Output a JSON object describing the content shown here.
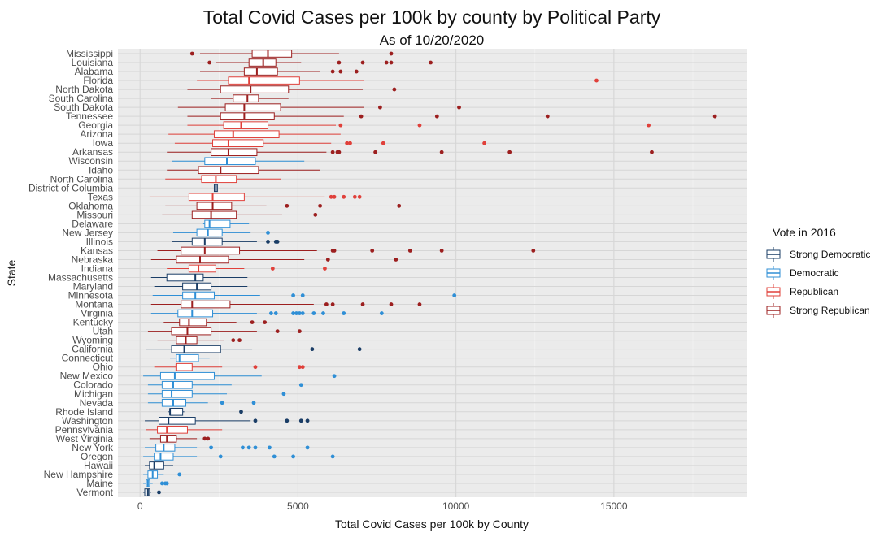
{
  "chart_data": {
    "type": "boxplot",
    "orientation": "horizontal",
    "title": "Total Covid Cases per 100k by county by Political Party",
    "subtitle": "As of 10/20/2020",
    "xlabel": "Total Covid Cases per 100k by County",
    "ylabel": "State",
    "xlim": [
      -700,
      19200
    ],
    "xticks": [
      0,
      5000,
      10000,
      15000
    ],
    "grid": true,
    "legend": {
      "title": "Vote in 2016",
      "position": "right",
      "entries": [
        {
          "key": "SD",
          "label": "Strong Democratic",
          "color": "#1a3d66"
        },
        {
          "key": "D",
          "label": "Democratic",
          "color": "#2f8fd6"
        },
        {
          "key": "R",
          "label": "Republican",
          "color": "#e0403a"
        },
        {
          "key": "SR",
          "label": "Strong Republican",
          "color": "#9c1f1f"
        }
      ]
    },
    "states": [
      {
        "name": "Mississippi",
        "party": "SR",
        "wlo": 1900,
        "q1": 3550,
        "med": 4050,
        "q3": 4800,
        "whi": 6300,
        "outliers": [
          1650,
          7950
        ]
      },
      {
        "name": "Louisiana",
        "party": "SR",
        "wlo": 2400,
        "q1": 3450,
        "med": 3900,
        "q3": 4300,
        "whi": 5100,
        "outliers": [
          2200,
          6300,
          7050,
          7800,
          7950,
          9200
        ]
      },
      {
        "name": "Alabama",
        "party": "SR",
        "wlo": 1900,
        "q1": 3300,
        "med": 3700,
        "q3": 4350,
        "whi": 5700,
        "outliers": [
          6100,
          6350,
          6850
        ]
      },
      {
        "name": "Florida",
        "party": "R",
        "wlo": 1800,
        "q1": 2800,
        "med": 3450,
        "q3": 5050,
        "whi": 7100,
        "outliers": [
          14450
        ]
      },
      {
        "name": "North Dakota",
        "party": "SR",
        "wlo": 1500,
        "q1": 2550,
        "med": 3500,
        "q3": 4700,
        "whi": 7050,
        "outliers": [
          8050
        ]
      },
      {
        "name": "South Carolina",
        "party": "SR",
        "wlo": 2250,
        "q1": 2950,
        "med": 3400,
        "q3": 3750,
        "whi": 4700,
        "outliers": []
      },
      {
        "name": "South Dakota",
        "party": "SR",
        "wlo": 1200,
        "q1": 2700,
        "med": 3300,
        "q3": 4450,
        "whi": 7100,
        "outliers": [
          7600,
          10100
        ]
      },
      {
        "name": "Tennessee",
        "party": "SR",
        "wlo": 1500,
        "q1": 2550,
        "med": 3300,
        "q3": 4250,
        "whi": 6450,
        "outliers": [
          7000,
          9400,
          12900,
          18200
        ]
      },
      {
        "name": "Georgia",
        "party": "R",
        "wlo": 1500,
        "q1": 2650,
        "med": 3200,
        "q3": 4050,
        "whi": 6200,
        "outliers": [
          6350,
          8850,
          16100
        ]
      },
      {
        "name": "Arizona",
        "party": "R",
        "wlo": 900,
        "q1": 2350,
        "med": 2950,
        "q3": 4400,
        "whi": 6350,
        "outliers": []
      },
      {
        "name": "Iowa",
        "party": "R",
        "wlo": 1100,
        "q1": 2300,
        "med": 2800,
        "q3": 3900,
        "whi": 6050,
        "outliers": [
          6550,
          6650,
          7700,
          10900
        ]
      },
      {
        "name": "Arkansas",
        "party": "SR",
        "wlo": 850,
        "q1": 2250,
        "med": 2800,
        "q3": 3700,
        "whi": 5900,
        "outliers": [
          6100,
          6250,
          6300,
          7450,
          9550,
          11700,
          16200
        ]
      },
      {
        "name": "Wisconsin",
        "party": "D",
        "wlo": 1000,
        "q1": 2050,
        "med": 2750,
        "q3": 3650,
        "whi": 5200,
        "outliers": []
      },
      {
        "name": "Idaho",
        "party": "SR",
        "wlo": 850,
        "q1": 1850,
        "med": 2550,
        "q3": 3750,
        "whi": 5700,
        "outliers": []
      },
      {
        "name": "North Carolina",
        "party": "R",
        "wlo": 800,
        "q1": 1950,
        "med": 2400,
        "q3": 3050,
        "whi": 4450,
        "outliers": []
      },
      {
        "name": "District of Columbia",
        "party": "SD",
        "wlo": 2350,
        "q1": 2350,
        "med": 2400,
        "q3": 2450,
        "whi": 2450,
        "outliers": []
      },
      {
        "name": "Texas",
        "party": "R",
        "wlo": 300,
        "q1": 1550,
        "med": 2300,
        "q3": 3300,
        "whi": 5850,
        "outliers": [
          6050,
          6150,
          6450,
          6800,
          6950
        ]
      },
      {
        "name": "Oklahoma",
        "party": "SR",
        "wlo": 800,
        "q1": 1800,
        "med": 2300,
        "q3": 2900,
        "whi": 4000,
        "outliers": [
          4650,
          5700,
          8200
        ]
      },
      {
        "name": "Missouri",
        "party": "SR",
        "wlo": 700,
        "q1": 1650,
        "med": 2250,
        "q3": 3050,
        "whi": 4500,
        "outliers": [
          5550
        ]
      },
      {
        "name": "Delaware",
        "party": "D",
        "wlo": 2000,
        "q1": 2050,
        "med": 2200,
        "q3": 2850,
        "whi": 3450,
        "outliers": []
      },
      {
        "name": "New Jersey",
        "party": "D",
        "wlo": 1050,
        "q1": 1800,
        "med": 2150,
        "q3": 2600,
        "whi": 3500,
        "outliers": [
          4050
        ]
      },
      {
        "name": "Illinois",
        "party": "SD",
        "wlo": 1000,
        "q1": 1650,
        "med": 2050,
        "q3": 2600,
        "whi": 3700,
        "outliers": [
          4050,
          4300,
          4350
        ]
      },
      {
        "name": "Kansas",
        "party": "SR",
        "wlo": 550,
        "q1": 1300,
        "med": 2050,
        "q3": 3150,
        "whi": 5600,
        "outliers": [
          6100,
          6150,
          7350,
          8550,
          9550,
          12450
        ]
      },
      {
        "name": "Nebraska",
        "party": "SR",
        "wlo": 350,
        "q1": 1150,
        "med": 1900,
        "q3": 2800,
        "whi": 5200,
        "outliers": [
          5950,
          8100
        ]
      },
      {
        "name": "Indiana",
        "party": "R",
        "wlo": 850,
        "q1": 1550,
        "med": 1850,
        "q3": 2400,
        "whi": 3300,
        "outliers": [
          4200,
          5850
        ]
      },
      {
        "name": "Massachusetts",
        "party": "SD",
        "wlo": 350,
        "q1": 850,
        "med": 1750,
        "q3": 2000,
        "whi": 3400,
        "outliers": []
      },
      {
        "name": "Maryland",
        "party": "SD",
        "wlo": 450,
        "q1": 1350,
        "med": 1800,
        "q3": 2250,
        "whi": 3400,
        "outliers": []
      },
      {
        "name": "Minnesota",
        "party": "D",
        "wlo": 400,
        "q1": 1350,
        "med": 1750,
        "q3": 2350,
        "whi": 3800,
        "outliers": [
          4850,
          5150,
          9950
        ]
      },
      {
        "name": "Montana",
        "party": "SR",
        "wlo": 350,
        "q1": 1300,
        "med": 1650,
        "q3": 2850,
        "whi": 5500,
        "outliers": [
          5900,
          6100,
          7050,
          7950,
          8850
        ]
      },
      {
        "name": "Virginia",
        "party": "D",
        "wlo": 350,
        "q1": 1200,
        "med": 1650,
        "q3": 2300,
        "whi": 3700,
        "outliers": [
          4150,
          4300,
          4850,
          4950,
          5050,
          5150,
          5500,
          5800,
          6450,
          7650
        ]
      },
      {
        "name": "Kentucky",
        "party": "SR",
        "wlo": 750,
        "q1": 1250,
        "med": 1550,
        "q3": 2100,
        "whi": 3050,
        "outliers": [
          3550,
          3950
        ]
      },
      {
        "name": "Utah",
        "party": "SR",
        "wlo": 250,
        "q1": 1000,
        "med": 1500,
        "q3": 2250,
        "whi": 3700,
        "outliers": [
          4350,
          5050
        ]
      },
      {
        "name": "Wyoming",
        "party": "SR",
        "wlo": 550,
        "q1": 1150,
        "med": 1450,
        "q3": 1800,
        "whi": 2650,
        "outliers": [
          2950,
          3150
        ]
      },
      {
        "name": "California",
        "party": "SD",
        "wlo": 200,
        "q1": 1000,
        "med": 1400,
        "q3": 2550,
        "whi": 3550,
        "outliers": [
          5450,
          6950
        ]
      },
      {
        "name": "Connecticut",
        "party": "D",
        "wlo": 950,
        "q1": 1150,
        "med": 1250,
        "q3": 1850,
        "whi": 2200,
        "outliers": []
      },
      {
        "name": "Ohio",
        "party": "R",
        "wlo": 450,
        "q1": 1150,
        "med": 1150,
        "q3": 1650,
        "whi": 2600,
        "outliers": [
          3650,
          5050,
          5150
        ]
      },
      {
        "name": "New Mexico",
        "party": "D",
        "wlo": 100,
        "q1": 650,
        "med": 1100,
        "q3": 2350,
        "whi": 3850,
        "outliers": [
          6150
        ]
      },
      {
        "name": "Colorado",
        "party": "D",
        "wlo": 250,
        "q1": 700,
        "med": 1050,
        "q3": 1650,
        "whi": 2900,
        "outliers": [
          5100
        ]
      },
      {
        "name": "Michigan",
        "party": "D",
        "wlo": 250,
        "q1": 700,
        "med": 1000,
        "q3": 1650,
        "whi": 2750,
        "outliers": [
          4550
        ]
      },
      {
        "name": "Nevada",
        "party": "D",
        "wlo": 250,
        "q1": 700,
        "med": 1050,
        "q3": 1450,
        "whi": 2150,
        "outliers": [
          2600,
          3600
        ]
      },
      {
        "name": "Rhode Island",
        "party": "SD",
        "wlo": 900,
        "q1": 950,
        "med": 950,
        "q3": 1350,
        "whi": 1400,
        "outliers": [
          3200
        ]
      },
      {
        "name": "Washington",
        "party": "SD",
        "wlo": 150,
        "q1": 600,
        "med": 900,
        "q3": 1750,
        "whi": 3500,
        "outliers": [
          3650,
          4650,
          5100,
          5300
        ]
      },
      {
        "name": "Pennsylvania",
        "party": "R",
        "wlo": 200,
        "q1": 550,
        "med": 850,
        "q3": 1500,
        "whi": 2600,
        "outliers": []
      },
      {
        "name": "West Virginia",
        "party": "SR",
        "wlo": 300,
        "q1": 650,
        "med": 850,
        "q3": 1150,
        "whi": 1800,
        "outliers": [
          2050,
          2150
        ]
      },
      {
        "name": "New York",
        "party": "D",
        "wlo": 150,
        "q1": 500,
        "med": 750,
        "q3": 1100,
        "whi": 1800,
        "outliers": [
          2250,
          3250,
          3450,
          3650,
          4100,
          5300
        ]
      },
      {
        "name": "Oregon",
        "party": "D",
        "wlo": 100,
        "q1": 450,
        "med": 650,
        "q3": 1050,
        "whi": 1800,
        "outliers": [
          2550,
          4250,
          4850,
          6100
        ]
      },
      {
        "name": "Hawaii",
        "party": "SD",
        "wlo": 150,
        "q1": 300,
        "med": 450,
        "q3": 750,
        "whi": 1050,
        "outliers": []
      },
      {
        "name": "New Hampshire",
        "party": "D",
        "wlo": 100,
        "q1": 250,
        "med": 400,
        "q3": 550,
        "whi": 750,
        "outliers": [
          1250
        ]
      },
      {
        "name": "Maine",
        "party": "D",
        "wlo": 100,
        "q1": 200,
        "med": 250,
        "q3": 300,
        "whi": 400,
        "outliers": [
          700,
          800,
          850
        ]
      },
      {
        "name": "Vermont",
        "party": "SD",
        "wlo": 100,
        "q1": 150,
        "med": 250,
        "q3": 300,
        "whi": 350,
        "outliers": [
          600
        ]
      }
    ]
  }
}
